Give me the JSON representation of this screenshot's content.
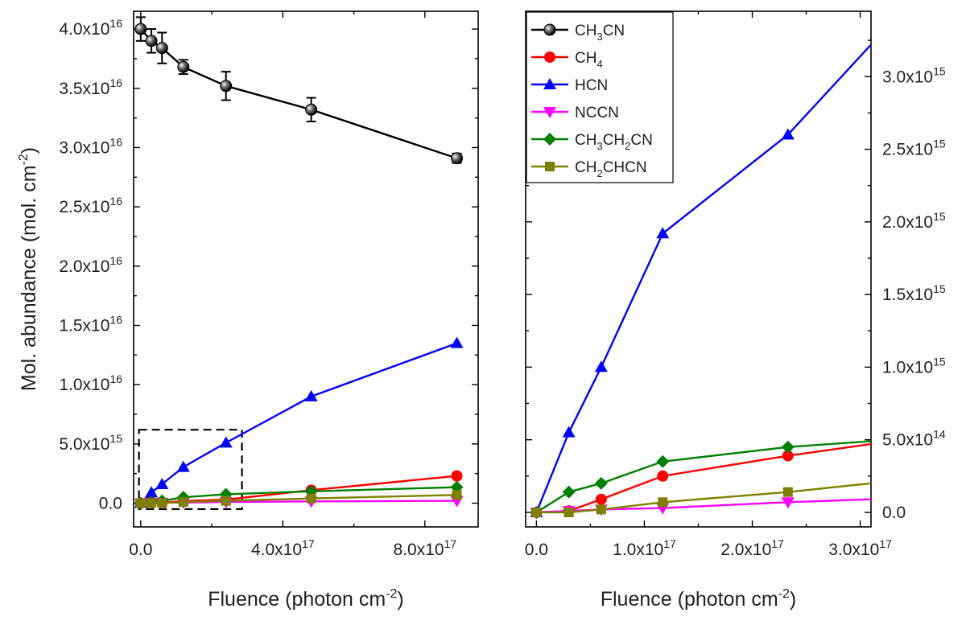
{
  "chart_data": [
    {
      "type": "line",
      "panel": "left",
      "xlabel": "Fluence (photon cm",
      "xlabel_sup": "-2",
      "xlabel_end": ")",
      "ylabel": "Mol. abundance (mol. cm",
      "ylabel_sup": "-2",
      "ylabel_end": ")",
      "xlim": [
        -2e+16,
        9.5e+17
      ],
      "ylim": [
        -2000000000000000.0,
        4.15e+16
      ],
      "xticks": [
        {
          "value": 0,
          "mant": "0.0",
          "exp": ""
        },
        {
          "value": 4e+17,
          "mant": "4.0x10",
          "exp": "17"
        },
        {
          "value": 8e+17,
          "mant": "8.0x10",
          "exp": "17"
        }
      ],
      "yticks": [
        {
          "value": 0,
          "mant": "0.0",
          "exp": ""
        },
        {
          "value": 5000000000000000.0,
          "mant": "5.0x10",
          "exp": "15"
        },
        {
          "value": 1e+16,
          "mant": "1.0x10",
          "exp": "16"
        },
        {
          "value": 1.5e+16,
          "mant": "1.5x10",
          "exp": "16"
        },
        {
          "value": 2e+16,
          "mant": "2.0x10",
          "exp": "16"
        },
        {
          "value": 2.5e+16,
          "mant": "2.5x10",
          "exp": "16"
        },
        {
          "value": 3e+16,
          "mant": "3.0x10",
          "exp": "16"
        },
        {
          "value": 3.5e+16,
          "mant": "3.5x10",
          "exp": "16"
        },
        {
          "value": 4e+16,
          "mant": "4.0x10",
          "exp": "16"
        }
      ],
      "zoom_box": {
        "x": [
          -5000000000000000.0,
          2.85e+17
        ],
        "y": [
          -500000000000000.0,
          6200000000000000.0
        ]
      },
      "series": [
        {
          "name": "CH3CN",
          "color": "#000000",
          "marker": "sphere",
          "x": [
            0,
            3e+16,
            6e+16,
            1.2e+17,
            2.4e+17,
            4.8e+17,
            8.9e+17
          ],
          "y": [
            4e+16,
            3.9e+16,
            3.84e+16,
            3.68e+16,
            3.52e+16,
            3.32e+16,
            2.91e+16
          ],
          "err": [
            1000000000000000.0,
            1000000000000000.0,
            1300000000000000.0,
            600000000000000.0,
            1200000000000000.0,
            1000000000000000.0,
            400000000000000.0
          ]
        },
        {
          "name": "CH4",
          "color": "#ff0000",
          "marker": "circle",
          "x": [
            0,
            3e+16,
            6e+16,
            1.2e+17,
            2.4e+17,
            4.8e+17,
            8.9e+17
          ],
          "y": [
            0,
            100000000000000.0,
            50000000000000.0,
            180000000000000.0,
            300000000000000.0,
            1100000000000000.0,
            2300000000000000.0
          ]
        },
        {
          "name": "HCN",
          "color": "#0000ff",
          "marker": "triangle-up",
          "x": [
            0,
            3e+16,
            6e+16,
            1.2e+17,
            2.4e+17,
            4.8e+17,
            8.9e+17
          ],
          "y": [
            0,
            900000000000000.0,
            1600000000000000.0,
            3050000000000000.0,
            5100000000000000.0,
            9000000000000000.0,
            1.35e+16
          ]
        },
        {
          "name": "NCCN",
          "color": "#ff00ff",
          "marker": "triangle-down",
          "x": [
            0,
            3e+16,
            6e+16,
            1.2e+17,
            2.4e+17,
            4.8e+17,
            8.9e+17
          ],
          "y": [
            0,
            20000000000000.0,
            50000000000000.0,
            50000000000000.0,
            100000000000000.0,
            150000000000000.0,
            200000000000000.0
          ]
        },
        {
          "name": "CH3CH2CN",
          "color": "#008000",
          "marker": "diamond",
          "x": [
            0,
            3e+16,
            6e+16,
            1.2e+17,
            2.4e+17,
            4.8e+17,
            8.9e+17
          ],
          "y": [
            0,
            100000000000000.0,
            200000000000000.0,
            500000000000000.0,
            750000000000000.0,
            1000000000000000.0,
            1350000000000000.0
          ]
        },
        {
          "name": "CH2CHCN",
          "color": "#808000",
          "marker": "square",
          "x": [
            0,
            3e+16,
            6e+16,
            1.2e+17,
            2.4e+17,
            4.8e+17,
            8.9e+17
          ],
          "y": [
            0,
            10000000000000.0,
            20000000000000.0,
            100000000000000.0,
            200000000000000.0,
            400000000000000.0,
            700000000000000.0
          ]
        }
      ]
    },
    {
      "type": "line",
      "panel": "right",
      "xlabel": "Fluence (photon cm",
      "xlabel_sup": "-2",
      "xlabel_end": ")",
      "xlim": [
        -1e+16,
        3.1e+17
      ],
      "ylim": [
        -100000000000000.0,
        3450000000000000.0
      ],
      "xticks": [
        {
          "value": 0,
          "mant": "0.0",
          "exp": ""
        },
        {
          "value": 1e+17,
          "mant": "1.0x10",
          "exp": "17"
        },
        {
          "value": 2e+17,
          "mant": "2.0x10",
          "exp": "17"
        },
        {
          "value": 3e+17,
          "mant": "3.0x10",
          "exp": "17"
        }
      ],
      "yticks": [
        {
          "value": 0,
          "mant": "0.0",
          "exp": ""
        },
        {
          "value": 500000000000000.0,
          "mant": "5.0x10",
          "exp": "14"
        },
        {
          "value": 1000000000000000.0,
          "mant": "1.0x10",
          "exp": "15"
        },
        {
          "value": 1500000000000000.0,
          "mant": "1.5x10",
          "exp": "15"
        },
        {
          "value": 2000000000000000.0,
          "mant": "2.0x10",
          "exp": "15"
        },
        {
          "value": 2500000000000000.0,
          "mant": "2.5x10",
          "exp": "15"
        },
        {
          "value": 3000000000000000.0,
          "mant": "3.0x10",
          "exp": "15"
        }
      ],
      "series": [
        {
          "name": "CH3CN",
          "color": "#000000",
          "marker": "sphere",
          "x": [],
          "y": []
        },
        {
          "name": "CH4",
          "color": "#ff0000",
          "marker": "circle",
          "x": [
            0,
            3e+16,
            6e+16,
            1.17e+17,
            2.33e+17,
            3.1e+17
          ],
          "y": [
            0,
            10000000000000.0,
            90000000000000.0,
            250000000000000.0,
            390000000000000.0,
            470000000000000.0
          ]
        },
        {
          "name": "HCN",
          "color": "#0000ff",
          "marker": "triangle-up",
          "x": [
            0,
            3e+16,
            6e+16,
            1.17e+17,
            2.33e+17,
            3.1e+17
          ],
          "y": [
            0,
            550000000000000.0,
            1000000000000000.0,
            1920000000000000.0,
            2600000000000000.0,
            3220000000000000.0
          ]
        },
        {
          "name": "NCCN",
          "color": "#ff00ff",
          "marker": "triangle-down",
          "x": [
            0,
            3e+16,
            6e+16,
            1.17e+17,
            2.33e+17,
            3.1e+17
          ],
          "y": [
            0,
            10000000000000.0,
            20000000000000.0,
            30000000000000.0,
            70000000000000.0,
            90000000000000.0
          ],
          "markers_on": [
            0,
            1,
            2,
            3,
            4
          ]
        },
        {
          "name": "CH3CH2CN",
          "color": "#008000",
          "marker": "diamond",
          "x": [
            0,
            3e+16,
            6e+16,
            1.17e+17,
            2.33e+17,
            3.1e+17
          ],
          "y": [
            0,
            140000000000000.0,
            200000000000000.0,
            350000000000000.0,
            450000000000000.0,
            490000000000000.0
          ]
        },
        {
          "name": "CH2CHCN",
          "color": "#808000",
          "marker": "square",
          "x": [
            0,
            3e+16,
            6e+16,
            1.17e+17,
            2.33e+17,
            3.1e+17
          ],
          "y": [
            0,
            0.0,
            20000000000000.0,
            70000000000000.0,
            140000000000000.0,
            200000000000000.0
          ]
        }
      ],
      "legend": {
        "placement": "top-left",
        "entries": [
          {
            "key": "CH3CN",
            "parts": [
              [
                "CH",
                ""
              ],
              [
                "3",
                "sub"
              ],
              [
                "CN",
                ""
              ]
            ]
          },
          {
            "key": "CH4",
            "parts": [
              [
                "CH",
                ""
              ],
              [
                "4",
                "sub"
              ]
            ]
          },
          {
            "key": "HCN",
            "parts": [
              [
                "HCN",
                ""
              ]
            ]
          },
          {
            "key": "NCCN",
            "parts": [
              [
                "NCCN",
                ""
              ]
            ]
          },
          {
            "key": "CH3CH2CN",
            "parts": [
              [
                "CH",
                ""
              ],
              [
                "3",
                "sub"
              ],
              [
                "CH",
                ""
              ],
              [
                "2",
                "sub"
              ],
              [
                "CN",
                ""
              ]
            ]
          },
          {
            "key": "CH2CHCN",
            "parts": [
              [
                "CH",
                ""
              ],
              [
                "2",
                "sub"
              ],
              [
                "CHCN",
                ""
              ]
            ]
          }
        ]
      }
    }
  ]
}
